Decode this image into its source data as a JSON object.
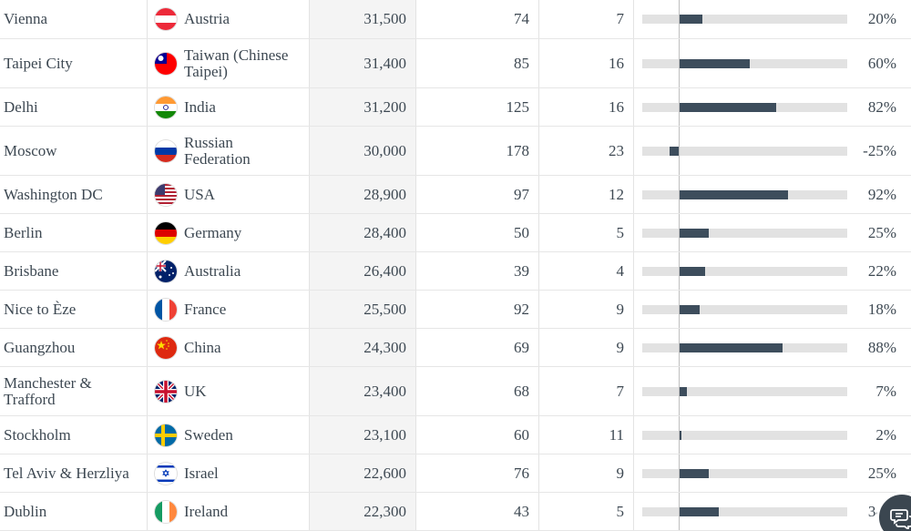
{
  "rows": [
    {
      "city": "Vienna",
      "country": "Austria",
      "flag": "austria-flag-icon",
      "population": "31,500",
      "col2": "74",
      "col3": "7",
      "change": 20,
      "change_label": "20%"
    },
    {
      "city": "Taipei City",
      "country": "Taiwan (Chinese Taipei)",
      "flag": "taiwan-flag-icon",
      "population": "31,400",
      "col2": "85",
      "col3": "16",
      "change": 60,
      "change_label": "60%"
    },
    {
      "city": "Delhi",
      "country": "India",
      "flag": "india-flag-icon",
      "population": "31,200",
      "col2": "125",
      "col3": "16",
      "change": 82,
      "change_label": "82%"
    },
    {
      "city": "Moscow",
      "country": "Russian Federation",
      "flag": "russia-flag-icon",
      "population": "30,000",
      "col2": "178",
      "col3": "23",
      "change": -25,
      "change_label": "-25%"
    },
    {
      "city": "Washington DC",
      "country": "USA",
      "flag": "usa-flag-icon",
      "population": "28,900",
      "col2": "97",
      "col3": "12",
      "change": 92,
      "change_label": "92%"
    },
    {
      "city": "Berlin",
      "country": "Germany",
      "flag": "germany-flag-icon",
      "population": "28,400",
      "col2": "50",
      "col3": "5",
      "change": 25,
      "change_label": "25%"
    },
    {
      "city": "Brisbane",
      "country": "Australia",
      "flag": "australia-flag-icon",
      "population": "26,400",
      "col2": "39",
      "col3": "4",
      "change": 22,
      "change_label": "22%"
    },
    {
      "city": "Nice to Èze",
      "country": "France",
      "flag": "france-flag-icon",
      "population": "25,500",
      "col2": "92",
      "col3": "9",
      "change": 18,
      "change_label": "18%"
    },
    {
      "city": "Guangzhou",
      "country": "China",
      "flag": "china-flag-icon",
      "population": "24,300",
      "col2": "69",
      "col3": "9",
      "change": 88,
      "change_label": "88%"
    },
    {
      "city": "Manchester & Trafford",
      "country": "UK",
      "flag": "uk-flag-icon",
      "population": "23,400",
      "col2": "68",
      "col3": "7",
      "change": 7,
      "change_label": "7%"
    },
    {
      "city": "Stockholm",
      "country": "Sweden",
      "flag": "sweden-flag-icon",
      "population": "23,100",
      "col2": "60",
      "col3": "11",
      "change": 2,
      "change_label": "2%"
    },
    {
      "city": "Tel Aviv & Herzliya",
      "country": "Israel",
      "flag": "israel-flag-icon",
      "population": "22,600",
      "col2": "76",
      "col3": "9",
      "change": 25,
      "change_label": "25%"
    },
    {
      "city": "Dublin",
      "country": "Ireland",
      "flag": "ireland-flag-icon",
      "population": "22,300",
      "col2": "43",
      "col3": "5",
      "change": 34,
      "change_label": "34%"
    }
  ],
  "chat_button": {
    "icon": "chat-bubbles-icon"
  },
  "colors": {
    "bar_fill": "#3d4d5c",
    "bar_track": "#e2e2e2",
    "text": "#3d4852"
  }
}
